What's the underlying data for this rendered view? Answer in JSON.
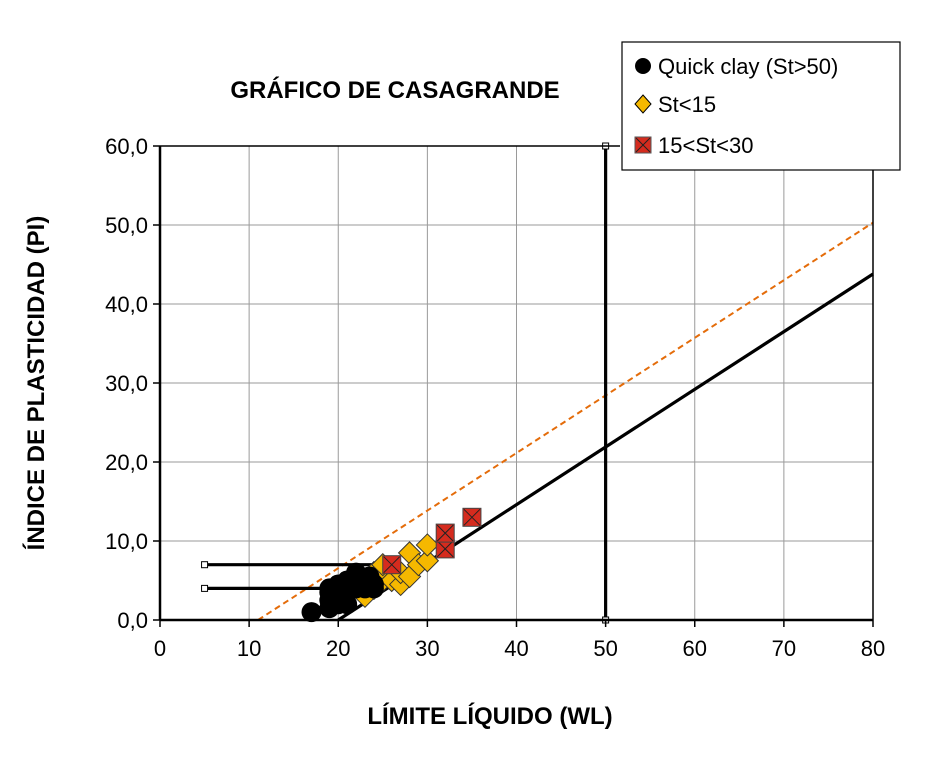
{
  "chart_data": {
    "type": "scatter",
    "title": "GRÁFICO DE CASAGRANDE",
    "xlabel": "LÍMITE LÍQUIDO (WL)",
    "ylabel": "ÍNDICE DE PLASTICIDAD  (PI)",
    "xlim": [
      0,
      80
    ],
    "ylim": [
      0,
      60
    ],
    "x_ticks": [
      "0",
      "10",
      "20",
      "30",
      "40",
      "50",
      "60",
      "70",
      "80"
    ],
    "y_ticks": [
      "0,0",
      "10,0",
      "20,0",
      "30,0",
      "40,0",
      "50,0",
      "60,0"
    ],
    "grid": true,
    "legend_position": "top-right",
    "series": [
      {
        "name": "Quick clay (St>50)",
        "marker": "circle",
        "color": "#000000",
        "points": [
          [
            17,
            1
          ],
          [
            19,
            1.5
          ],
          [
            19,
            2.5
          ],
          [
            19,
            3.5
          ],
          [
            19,
            4
          ],
          [
            20,
            2
          ],
          [
            20,
            3
          ],
          [
            20,
            4.5
          ],
          [
            21,
            2
          ],
          [
            21,
            3.5
          ],
          [
            21,
            5
          ],
          [
            22,
            4
          ],
          [
            22,
            6
          ],
          [
            23,
            4
          ],
          [
            23,
            5
          ],
          [
            24,
            4.5
          ],
          [
            24,
            4
          ],
          [
            23.5,
            5.5
          ],
          [
            22.5,
            5
          ]
        ]
      },
      {
        "name": "St<15",
        "marker": "diamond",
        "color": "#F5B800",
        "points": [
          [
            23,
            3
          ],
          [
            24,
            4
          ],
          [
            24,
            6
          ],
          [
            25,
            5
          ],
          [
            25,
            6.5
          ],
          [
            26,
            5
          ],
          [
            27,
            4.5
          ],
          [
            27,
            6
          ],
          [
            28,
            5.5
          ],
          [
            28,
            8.5
          ],
          [
            29,
            7
          ],
          [
            30,
            7.5
          ],
          [
            30,
            9.5
          ],
          [
            25,
            7
          ]
        ]
      },
      {
        "name": "15<St<30",
        "marker": "square-x",
        "color": "#D52B1E",
        "points": [
          [
            26,
            7
          ],
          [
            32,
            9
          ],
          [
            32,
            11
          ],
          [
            35,
            13
          ]
        ]
      }
    ],
    "lines": [
      {
        "role": "a-line",
        "style": "solid",
        "color": "#000000",
        "points": [
          [
            20,
            0
          ],
          [
            80,
            43.8
          ]
        ]
      },
      {
        "role": "u-line",
        "style": "dashed",
        "color": "#E46C0A",
        "points": [
          [
            11,
            0
          ],
          [
            80,
            50.3
          ]
        ]
      },
      {
        "role": "wl-50",
        "style": "solid",
        "color": "#000000",
        "points": [
          [
            50,
            0
          ],
          [
            50,
            60
          ]
        ]
      },
      {
        "role": "cl-ml-upper",
        "style": "solid",
        "color": "#000000",
        "points": [
          [
            5,
            7
          ],
          [
            24,
            7
          ]
        ]
      },
      {
        "role": "cl-ml-lower",
        "style": "solid",
        "color": "#000000",
        "points": [
          [
            5,
            4
          ],
          [
            22,
            4
          ]
        ]
      }
    ]
  }
}
